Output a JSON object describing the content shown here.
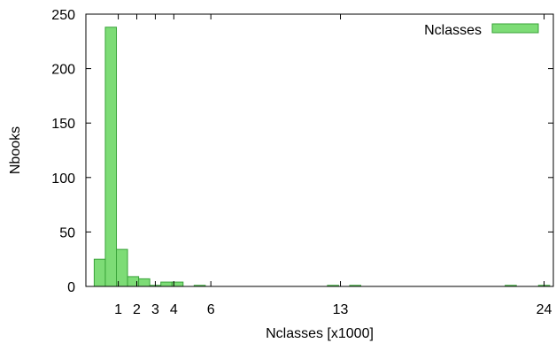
{
  "chart_data": {
    "type": "bar",
    "title": "",
    "xlabel": "Nclasses [x1000]",
    "ylabel": "Nbooks",
    "xlim": [
      -0.75,
      24.5
    ],
    "ylim": [
      0,
      250
    ],
    "x_ticks": [
      1,
      2,
      3,
      4,
      6,
      13,
      24
    ],
    "y_ticks": [
      0,
      50,
      100,
      150,
      200,
      250
    ],
    "bin_width": 0.6,
    "grid": false,
    "legend": {
      "position": "top-right"
    },
    "series": [
      {
        "name": "Nclasses",
        "color": "#7ddc76",
        "edge_color": "#3aa33a",
        "x": [
          0,
          0.6,
          1.2,
          1.8,
          2.4,
          3.0,
          3.6,
          4.2,
          5.4,
          12.6,
          13.8,
          22.2,
          24.0
        ],
        "values": [
          25,
          238,
          34,
          9,
          7,
          1,
          4,
          4,
          1,
          1,
          1,
          1,
          1
        ]
      }
    ]
  }
}
